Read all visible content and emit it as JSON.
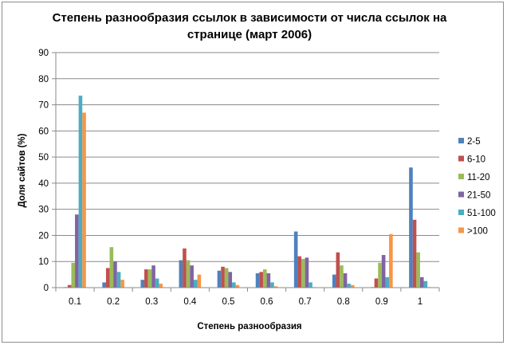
{
  "chart_data": {
    "type": "bar",
    "title_line1": "Степень разнообразия  ссылок в зависимости от числа ссылок на",
    "title_line2": "странице (март 2006)",
    "xlabel": "Степень разнообразия",
    "ylabel": "Доля сайтов (%)",
    "ylim": [
      0,
      90
    ],
    "yticks": [
      0,
      10,
      20,
      30,
      40,
      50,
      60,
      70,
      80,
      90
    ],
    "grid": true,
    "legend_position": "right",
    "categories": [
      "0.1",
      "0.2",
      "0.3",
      "0.4",
      "0.5",
      "0.6",
      "0.7",
      "0.8",
      "0.9",
      "1"
    ],
    "series": [
      {
        "name": "2-5",
        "color": "#4f81bd",
        "values": [
          0.2,
          2,
          3,
          10.5,
          6.5,
          5.5,
          21.5,
          5,
          0.2,
          46
        ]
      },
      {
        "name": "6-10",
        "color": "#c0504d",
        "values": [
          1,
          7.5,
          7,
          15,
          8,
          6,
          12,
          13.5,
          3.5,
          26
        ]
      },
      {
        "name": "11-20",
        "color": "#9bbb59",
        "values": [
          9.5,
          15.5,
          7,
          10.5,
          7.5,
          7,
          11,
          8.5,
          9.5,
          13.5
        ]
      },
      {
        "name": "21-50",
        "color": "#8064a2",
        "values": [
          28,
          10,
          8.5,
          8.5,
          6,
          5.5,
          11.5,
          5.5,
          12.5,
          4
        ]
      },
      {
        "name": "51-100",
        "color": "#4bacc6",
        "values": [
          73.5,
          6,
          3.5,
          3,
          2,
          2,
          2,
          1.5,
          4,
          2.5
        ]
      },
      {
        "name": ">100",
        "color": "#f79646",
        "values": [
          67,
          3,
          1.5,
          5,
          1,
          0.5,
          0.2,
          1,
          20.5,
          0.2
        ]
      }
    ]
  }
}
